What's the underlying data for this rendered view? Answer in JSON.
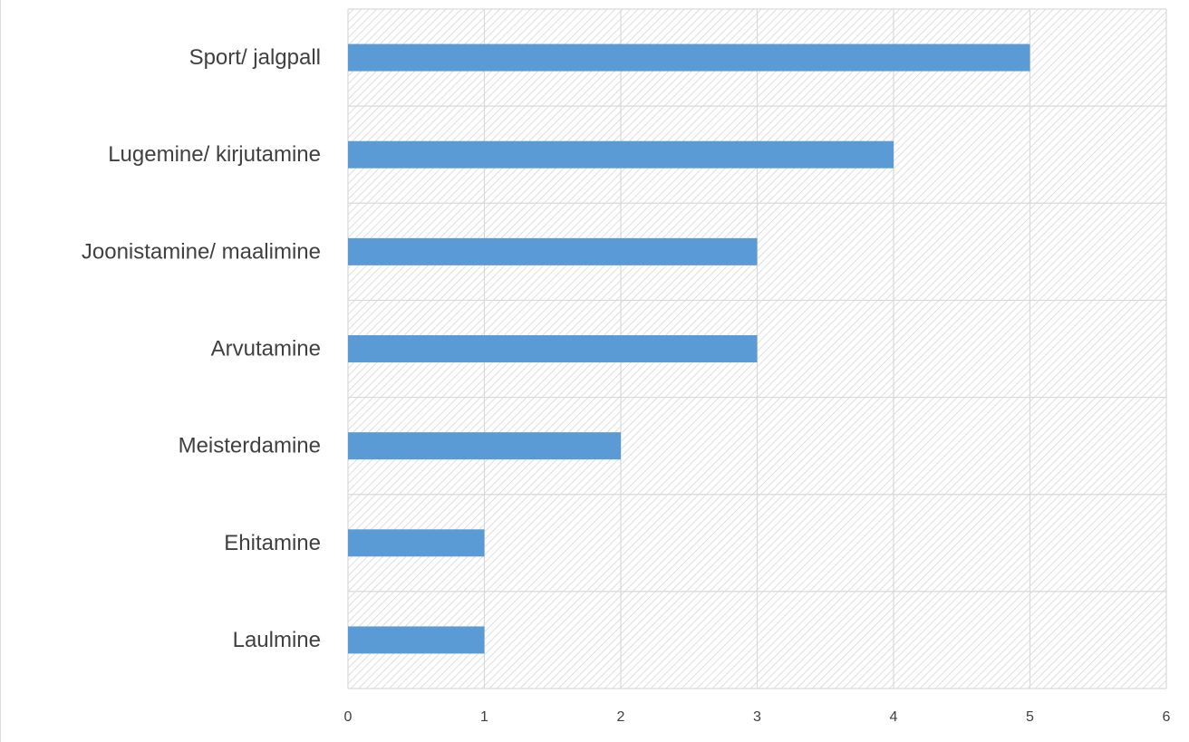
{
  "chart_data": {
    "type": "bar",
    "orientation": "horizontal",
    "title": "",
    "xlabel": "",
    "ylabel": "",
    "categories": [
      "Sport/ jalgpall",
      "Lugemine/ kirjutamine",
      "Joonistamine/ maalimine",
      "Arvutamine",
      "Meisterdamine",
      "Ehitamine",
      "Laulmine"
    ],
    "values": [
      5,
      4,
      3,
      3,
      2,
      1,
      1
    ],
    "xlim": [
      0,
      6
    ],
    "xticks": [
      "0",
      "1",
      "2",
      "3",
      "4",
      "5",
      "6"
    ],
    "grid": true,
    "legend": "none",
    "bar_color": "#5b9bd5",
    "plot_pattern_color": "#d0d0d0",
    "gridline_color": "#d9d9d9"
  }
}
